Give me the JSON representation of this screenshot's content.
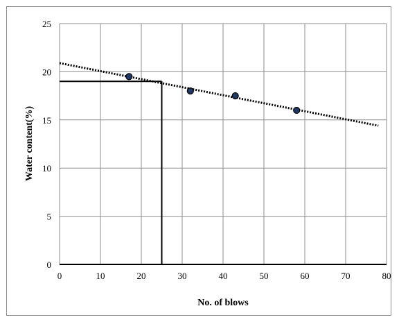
{
  "chart_data": {
    "type": "scatter",
    "xlabel": "No. of blows",
    "ylabel": "Water content(%)",
    "xlim": [
      0,
      80
    ],
    "ylim": [
      0,
      25
    ],
    "xticks": [
      "0",
      "10",
      "20",
      "30",
      "40",
      "50",
      "60",
      "70",
      "80"
    ],
    "yticks": [
      "0",
      "5",
      "10",
      "15",
      "20",
      "25"
    ],
    "grid": true,
    "legend": "none",
    "series": [
      {
        "x": [
          17,
          32,
          43,
          58
        ],
        "y": [
          19.5,
          18.0,
          17.5,
          16.0
        ],
        "marker": "circle",
        "color": "#1f3864"
      }
    ],
    "trendline": {
      "type": "linear",
      "style": "dotted",
      "color": "#000000",
      "x": [
        0,
        78
      ],
      "y": [
        20.9,
        14.4
      ]
    },
    "reference_lines": {
      "x": 25,
      "y": 19,
      "color": "#000000"
    }
  }
}
